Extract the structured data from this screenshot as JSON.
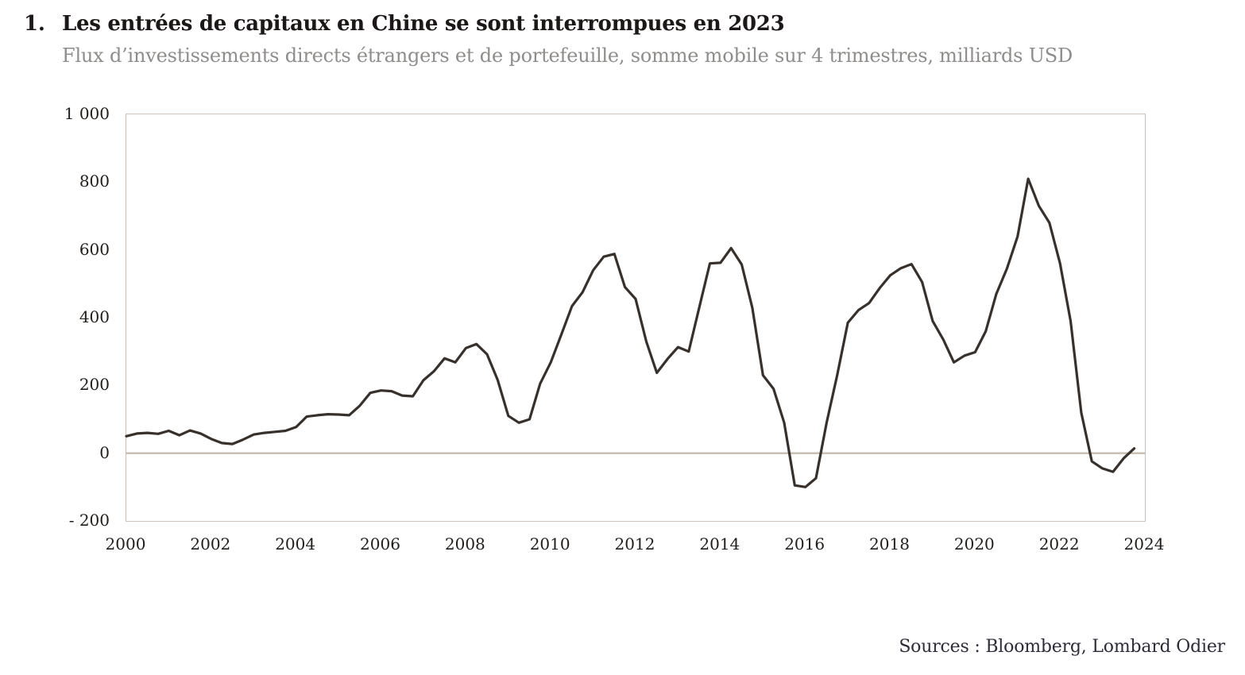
{
  "figure": {
    "number": "1.",
    "title": "Les entrées de capitaux en Chine se sont interrompues en 2023",
    "subtitle": "Flux d’investissements directs étrangers et de portefeuille, somme mobile sur 4 trimestres, milliards USD",
    "source": "Sources : Bloomberg, Lombard Odier"
  },
  "chart_data": {
    "type": "line",
    "title": "Les entrées de capitaux en Chine se sont interrompues en 2023",
    "ylabel": "milliards USD",
    "xlabel": "",
    "xlim": [
      2000,
      2024
    ],
    "ylim": [
      -200,
      1000
    ],
    "grid": false,
    "legend_position": "none",
    "zero_line": true,
    "x_start": 2000.0,
    "x_step": 0.25,
    "x_unit": "trimestre",
    "series": [
      {
        "name": "Flux IDE et portefeuille, somme mobile 4 trimestres",
        "color": "#38302b",
        "values": [
          50,
          58,
          60,
          57,
          66,
          53,
          67,
          58,
          42,
          30,
          27,
          40,
          55,
          60,
          63,
          66,
          77,
          108,
          112,
          115,
          114,
          112,
          140,
          178,
          185,
          183,
          170,
          168,
          215,
          242,
          280,
          268,
          310,
          322,
          292,
          216,
          110,
          90,
          100,
          205,
          268,
          350,
          434,
          475,
          540,
          580,
          588,
          490,
          455,
          330,
          237,
          278,
          313,
          300,
          430,
          560,
          562,
          605,
          557,
          429,
          230,
          190,
          90,
          -95,
          -100,
          -74,
          90,
          230,
          385,
          422,
          443,
          487,
          525,
          546,
          558,
          505,
          390,
          335,
          268,
          288,
          298,
          360,
          470,
          545,
          640,
          810,
          730,
          680,
          560,
          390,
          120,
          -24,
          -45,
          -55,
          -15,
          14
        ]
      }
    ],
    "y_ticks": [
      {
        "value": 1000,
        "label": "1 000"
      },
      {
        "value": 800,
        "label": "800"
      },
      {
        "value": 600,
        "label": "600"
      },
      {
        "value": 400,
        "label": "400"
      },
      {
        "value": 200,
        "label": "200"
      },
      {
        "value": 0,
        "label": "0"
      },
      {
        "value": -200,
        "label": "- 200"
      }
    ],
    "x_ticks": [
      {
        "value": 2000,
        "label": "2000"
      },
      {
        "value": 2002,
        "label": "2002"
      },
      {
        "value": 2004,
        "label": "2004"
      },
      {
        "value": 2006,
        "label": "2006"
      },
      {
        "value": 2008,
        "label": "2008"
      },
      {
        "value": 2010,
        "label": "2010"
      },
      {
        "value": 2012,
        "label": "2012"
      },
      {
        "value": 2014,
        "label": "2014"
      },
      {
        "value": 2016,
        "label": "2016"
      },
      {
        "value": 2018,
        "label": "2018"
      },
      {
        "value": 2020,
        "label": "2020"
      },
      {
        "value": 2022,
        "label": "2022"
      },
      {
        "value": 2024,
        "label": "2024"
      }
    ],
    "colors": {
      "line": "#38302b",
      "zero_line": "#c6bcb2",
      "plot_border": "#cbc3b9",
      "title_text": "#1b1817",
      "subtitle_text": "#8f8d8b",
      "tick_text": "#211d1a",
      "source_text": "#2f2c3a",
      "background": "#ffffff"
    }
  }
}
